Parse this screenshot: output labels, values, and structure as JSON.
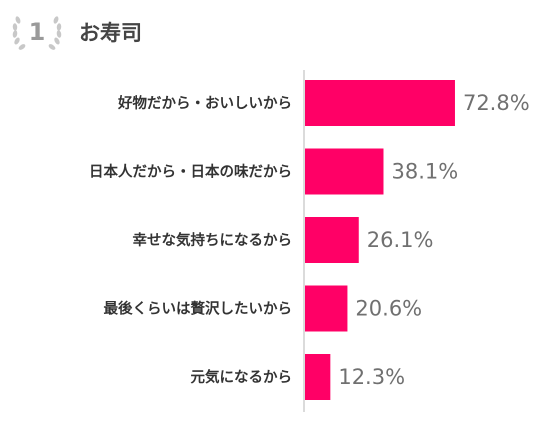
{
  "header": {
    "rank": "1",
    "title": "お寿司"
  },
  "chart_data": {
    "type": "bar",
    "orientation": "horizontal",
    "categories": [
      "好物だから・おいしいから",
      "日本人だから・日本の味だから",
      "幸せな気持ちになるから",
      "最後くらいは贅沢したいから",
      "元気になるから"
    ],
    "values": [
      72.8,
      38.1,
      26.1,
      20.6,
      12.3
    ],
    "value_labels": [
      "72.8%",
      "38.1%",
      "26.1%",
      "20.6%",
      "12.3%"
    ],
    "title": "",
    "xlabel": "",
    "ylabel": "",
    "xlim": [
      0,
      100
    ],
    "bar_color": "#ff0066",
    "grid": false
  }
}
